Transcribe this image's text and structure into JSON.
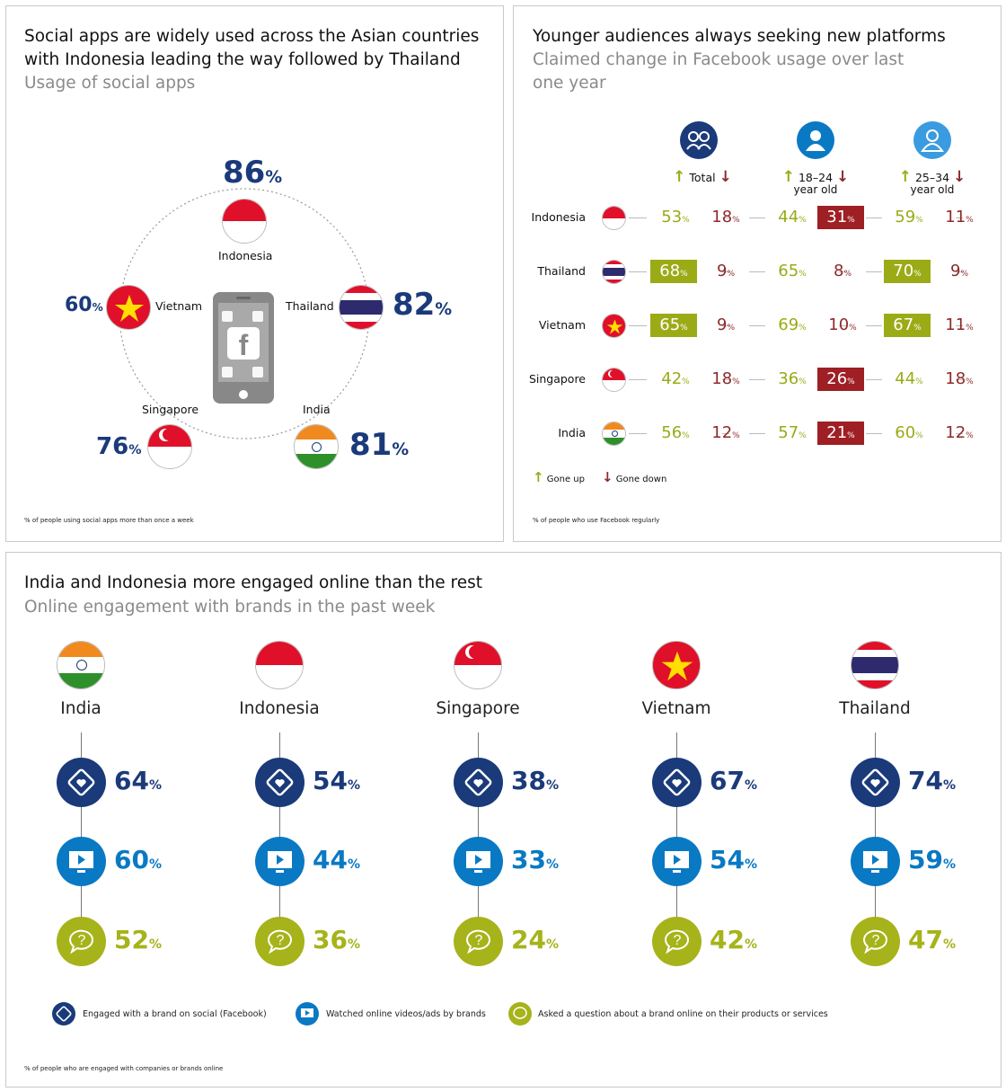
{
  "colors": {
    "navy": "#1a3a7a",
    "blue": "#0a79c4",
    "olive": "#a6b31a",
    "dark_red": "#9e1f24",
    "grey_text": "#8a8a8a"
  },
  "panel1": {
    "title_line1": "Social apps are widely used across the Asian countries",
    "title_line2": "with Indonesia leading the way followed by Thailand",
    "subtitle": "Usage of social apps",
    "footnote": "% of people using social apps more than once a week",
    "center_icon": "phone-with-facebook-icon",
    "percent_sign": "%"
  },
  "panel2": {
    "title": "Younger audiences always seeking new platforms",
    "subtitle_line1": "Claimed change in Facebook usage over last",
    "subtitle_line2": "one year",
    "col_total": "Total",
    "col_18_24_line1": "18–24",
    "col_18_24_line2": "year old",
    "col_25_34_line1": "25–34",
    "col_25_34_line2": "year old",
    "legend_up": "Gone up",
    "legend_down": "Gone down",
    "footnote": "% of people who use Facebook regularly",
    "percent_sign": "%"
  },
  "panel3": {
    "title": "India and Indonesia more engaged online than the rest",
    "subtitle": "Online engagement with brands in the past week",
    "legend_social": "Engaged with a brand on social (Facebook)",
    "legend_videos": "Watched online videos/ads by brands",
    "legend_question": "Asked a question about a brand online on their products or services",
    "footnote": "% of people who are engaged with companies or brands online",
    "percent_sign": "%"
  },
  "chart_data": [
    {
      "type": "bar",
      "title": "Social apps are widely used across the Asian countries with Indonesia leading the way followed by Thailand",
      "subtitle": "Usage of social apps",
      "categories": [
        "Indonesia",
        "Thailand",
        "India",
        "Singapore",
        "Vietnam"
      ],
      "values": [
        86,
        82,
        81,
        76,
        60
      ],
      "unit": "%"
    },
    {
      "type": "table",
      "title": "Younger audiences always seeking new platforms",
      "subtitle": "Claimed change in Facebook usage over last one year",
      "columns": [
        "Total",
        "18–24 year old",
        "25–34 year old"
      ],
      "rows": [
        {
          "country": "Indonesia",
          "total": [
            53,
            18
          ],
          "age_18_24": [
            44,
            31
          ],
          "age_25_34": [
            59,
            11
          ]
        },
        {
          "country": "Thailand",
          "total": [
            68,
            9
          ],
          "age_18_24": [
            65,
            8
          ],
          "age_25_34": [
            70,
            9
          ]
        },
        {
          "country": "Vietnam",
          "total": [
            65,
            9
          ],
          "age_18_24": [
            69,
            10
          ],
          "age_25_34": [
            67,
            11
          ]
        },
        {
          "country": "Singapore",
          "total": [
            42,
            18
          ],
          "age_18_24": [
            36,
            26
          ],
          "age_25_34": [
            44,
            18
          ]
        },
        {
          "country": "India",
          "total": [
            56,
            12
          ],
          "age_18_24": [
            57,
            21
          ],
          "age_25_34": [
            60,
            12
          ]
        }
      ],
      "value_pair_order": [
        "Gone up",
        "Gone down"
      ],
      "highlighted": [
        {
          "country": "Thailand",
          "column": "Total",
          "measure": "Gone up"
        },
        {
          "country": "Thailand",
          "column": "25–34 year old",
          "measure": "Gone up"
        },
        {
          "country": "Vietnam",
          "column": "Total",
          "measure": "Gone up"
        },
        {
          "country": "Vietnam",
          "column": "25–34 year old",
          "measure": "Gone up"
        },
        {
          "country": "Indonesia",
          "column": "18–24 year old",
          "measure": "Gone down"
        },
        {
          "country": "Singapore",
          "column": "18–24 year old",
          "measure": "Gone down"
        },
        {
          "country": "India",
          "column": "18–24 year old",
          "measure": "Gone down"
        }
      ],
      "unit": "%"
    },
    {
      "type": "bar",
      "title": "India and Indonesia more engaged online than the rest",
      "subtitle": "Online engagement with brands in the past week",
      "categories": [
        "India",
        "Indonesia",
        "Singapore",
        "Vietnam",
        "Thailand"
      ],
      "series": [
        {
          "name": "Engaged with a brand on social (Facebook)",
          "values": [
            64,
            54,
            38,
            67,
            74
          ]
        },
        {
          "name": "Watched online videos/ads by brands",
          "values": [
            60,
            44,
            33,
            54,
            59
          ]
        },
        {
          "name": "Asked a question about a brand online on their products or services",
          "values": [
            52,
            36,
            24,
            42,
            47
          ]
        }
      ],
      "unit": "%"
    }
  ]
}
